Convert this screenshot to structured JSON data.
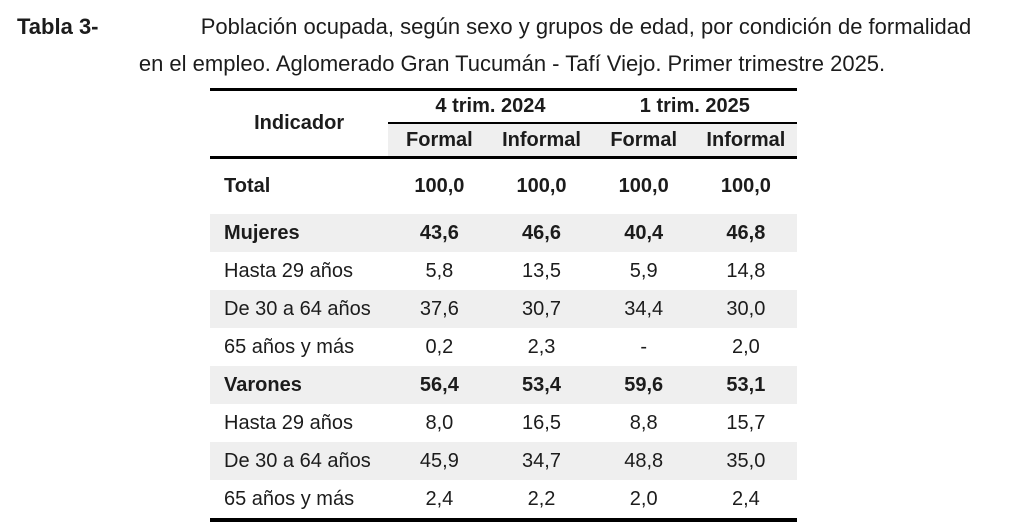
{
  "title": {
    "label": "Tabla 3-",
    "line1": "Población ocupada, según sexo y grupos de edad, por condición de formalidad",
    "line2": "en el empleo. Aglomerado Gran Tucumán - Tafí Viejo. Primer trimestre 2025."
  },
  "chart_data": {
    "type": "table",
    "title": "Tabla 3- Población ocupada, según sexo y grupos de edad, por condición de formalidad en el empleo. Aglomerado Gran Tucumán - Tafí Viejo. Primer trimestre 2025.",
    "indicator_header": "Indicador",
    "column_groups": [
      {
        "label": "4 trim. 2024",
        "span": 2
      },
      {
        "label": "1 trim. 2025",
        "span": 2
      }
    ],
    "sub_headers": [
      "Formal",
      "Informal",
      "Formal",
      "Informal"
    ],
    "unit": "percent",
    "rows": [
      {
        "label": "Total",
        "bold": true,
        "shaded": false,
        "total": true,
        "values": [
          "100,0",
          "100,0",
          "100,0",
          "100,0"
        ]
      },
      {
        "label": "Mujeres",
        "bold": true,
        "shaded": true,
        "total": false,
        "values": [
          "43,6",
          "46,6",
          "40,4",
          "46,8"
        ]
      },
      {
        "label": "Hasta 29 años",
        "bold": false,
        "shaded": false,
        "total": false,
        "values": [
          "5,8",
          "13,5",
          "5,9",
          "14,8"
        ]
      },
      {
        "label": "De 30 a 64 años",
        "bold": false,
        "shaded": true,
        "total": false,
        "values": [
          "37,6",
          "30,7",
          "34,4",
          "30,0"
        ]
      },
      {
        "label": "65 años y más",
        "bold": false,
        "shaded": false,
        "total": false,
        "values": [
          "0,2",
          "2,3",
          "-",
          "2,0"
        ]
      },
      {
        "label": "Varones",
        "bold": true,
        "shaded": true,
        "total": false,
        "values": [
          "56,4",
          "53,4",
          "59,6",
          "53,1"
        ]
      },
      {
        "label": "Hasta 29 años",
        "bold": false,
        "shaded": false,
        "total": false,
        "values": [
          "8,0",
          "16,5",
          "8,8",
          "15,7"
        ]
      },
      {
        "label": "De 30 a 64 años",
        "bold": false,
        "shaded": true,
        "total": false,
        "values": [
          "45,9",
          "34,7",
          "48,8",
          "35,0"
        ]
      },
      {
        "label": "65 años y más",
        "bold": false,
        "shaded": false,
        "total": false,
        "values": [
          "2,4",
          "2,2",
          "2,0",
          "2,4"
        ]
      }
    ]
  },
  "colors": {
    "shaded_row": "#efefef",
    "border": "#000000",
    "text": "#1c1c1c",
    "background": "#ffffff"
  }
}
